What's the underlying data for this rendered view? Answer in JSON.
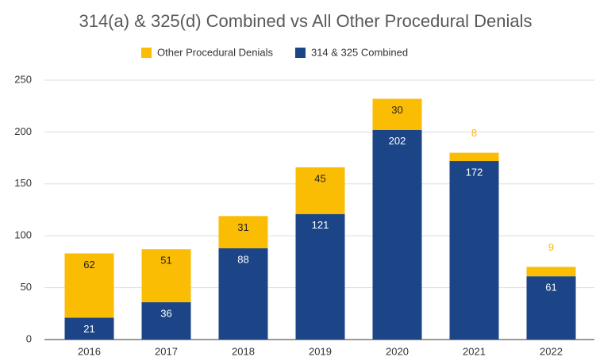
{
  "chart_data": {
    "type": "stacked_bar",
    "title": "314(a) & 325(d) Combined vs All Other Procedural Denials",
    "categories": [
      "2016",
      "2017",
      "2018",
      "2019",
      "2020",
      "2021",
      "2022"
    ],
    "series": [
      {
        "name": "Other Procedural Denials",
        "color": "#fbbc04",
        "values": [
          62,
          51,
          31,
          45,
          30,
          8,
          9
        ]
      },
      {
        "name": "314 & 325 Combined",
        "color": "#1c4587",
        "values": [
          21,
          36,
          88,
          121,
          202,
          172,
          61
        ]
      }
    ],
    "ylim": [
      0,
      250
    ],
    "yticks": [
      0,
      50,
      100,
      150,
      200,
      250
    ],
    "grid": true,
    "legend": "top"
  }
}
